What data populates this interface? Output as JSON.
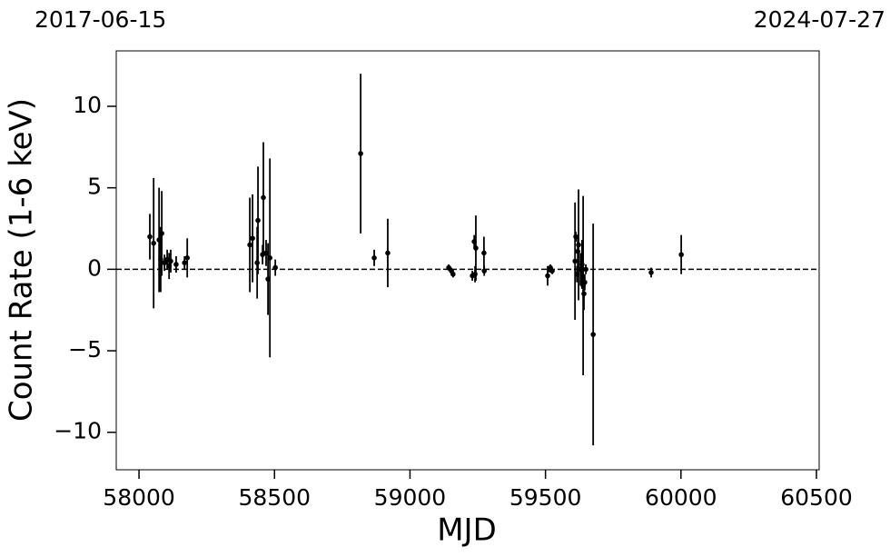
{
  "chart_data": {
    "type": "errorbar",
    "xlabel": "MJD",
    "ylabel": "Count Rate (1-6 keV)",
    "top_left_label": "2017-06-15",
    "top_right_label": "2024-07-27",
    "color": "#000000",
    "hline": 0,
    "xlim": [
      57916,
      60510
    ],
    "ylim": [
      -12.3,
      13.4
    ],
    "xticks": [
      58000,
      58500,
      59000,
      59500,
      60000,
      60500
    ],
    "yticks": [
      {
        "value": -10,
        "label": "−10"
      },
      {
        "value": -5,
        "label": "−5"
      },
      0,
      5,
      10
    ],
    "x": [
      58040,
      58054,
      58074,
      58080,
      58084,
      58094,
      58104,
      58111,
      58117,
      58137,
      58168,
      58178,
      58409,
      58419,
      58436,
      58439,
      58456,
      58459,
      58469,
      58476,
      58483,
      58503,
      58818,
      58868,
      58918,
      59143,
      59153,
      59159,
      59230,
      59237,
      59240,
      59243,
      59273,
      59274,
      59508,
      59515,
      59518,
      59525,
      59609,
      59612,
      59616,
      59619,
      59622,
      59629,
      59635,
      59639,
      59642,
      59645,
      59649,
      59676,
      59890,
      60001
    ],
    "values": [
      2.0,
      1.6,
      1.8,
      0.6,
      2.2,
      0.4,
      0.6,
      0.2,
      0.5,
      0.3,
      0.4,
      0.7,
      1.5,
      1.9,
      0.4,
      3.0,
      0.9,
      4.4,
      1.0,
      -0.6,
      0.7,
      0.1,
      7.1,
      0.7,
      1.0,
      0.1,
      -0.1,
      -0.3,
      -0.4,
      1.7,
      -0.3,
      1.3,
      1.0,
      -0.1,
      -0.4,
      0.0,
      0.1,
      -0.1,
      0.5,
      2.0,
      -0.3,
      1.1,
      1.5,
      0.0,
      0.3,
      -1.0,
      -1.5,
      -0.8,
      0.0,
      -4.0,
      -0.2,
      0.9
    ],
    "errors": [
      1.4,
      4.0,
      3.2,
      2.0,
      2.6,
      0.5,
      0.6,
      0.8,
      0.7,
      0.5,
      0.4,
      1.2,
      2.9,
      2.7,
      2.2,
      3.3,
      0.6,
      3.4,
      0.8,
      2.2,
      6.1,
      0.5,
      4.9,
      0.5,
      2.1,
      0.2,
      0.2,
      0.2,
      0.3,
      0.4,
      0.5,
      2.0,
      1.0,
      0.3,
      0.6,
      0.2,
      0.2,
      0.2,
      3.6,
      0.3,
      0.5,
      1.0,
      3.4,
      1.0,
      1.5,
      5.5,
      1.0,
      0.5,
      0.3,
      6.8,
      0.3,
      1.2
    ]
  }
}
